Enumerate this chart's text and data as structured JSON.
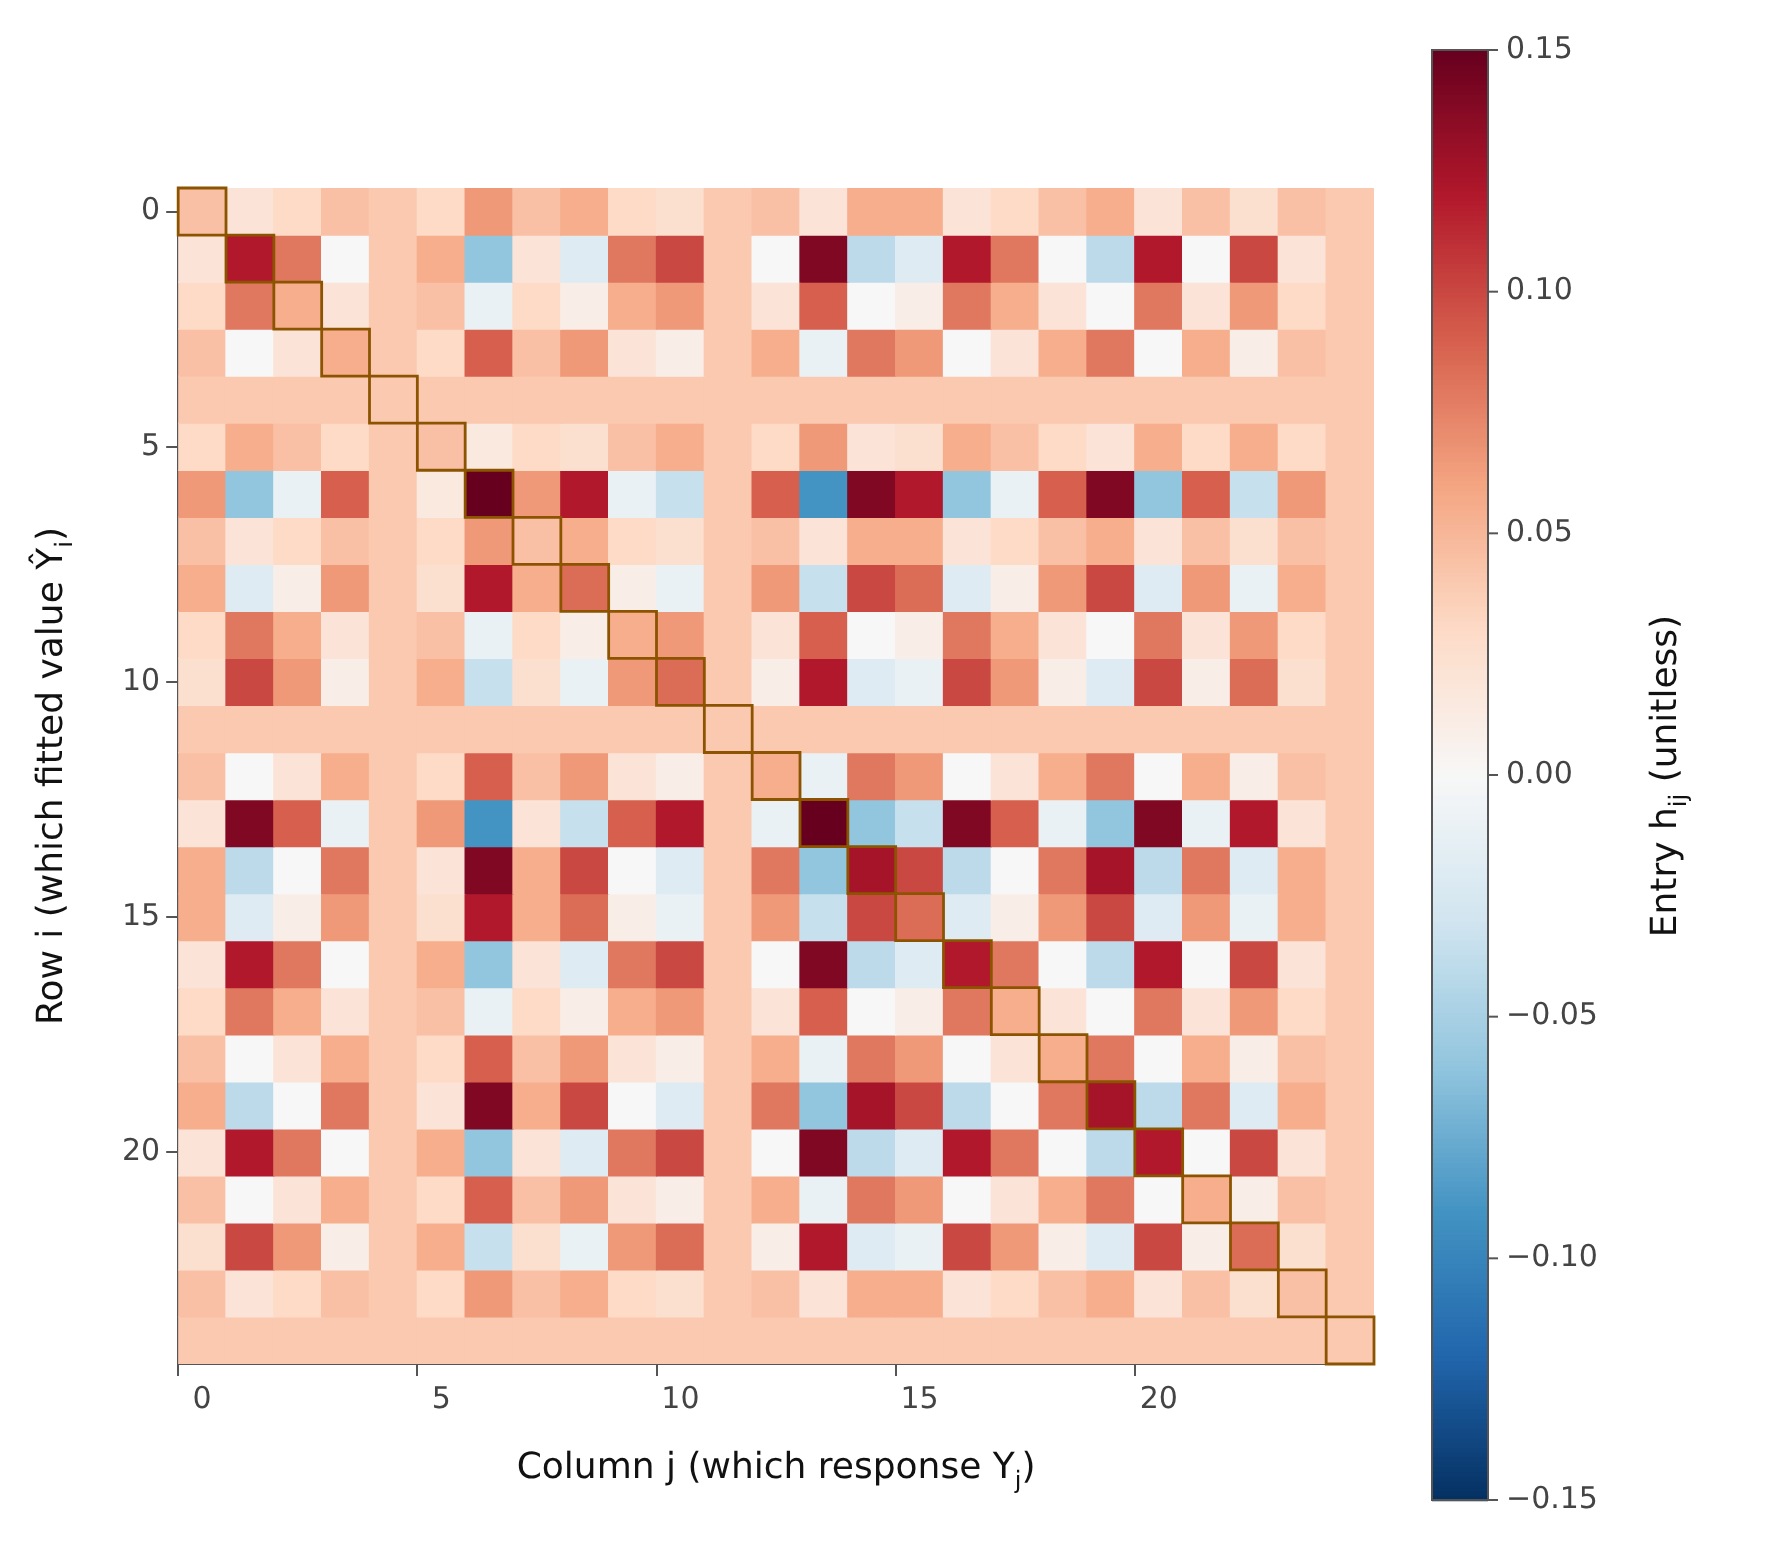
{
  "chart_data": {
    "type": "heatmap",
    "xlabel": "Column j (which response Y$_{j}$)",
    "ylabel": "Row i (which fitted value Ŷ$_{i}$)",
    "clabel": "Entry h$_{ij}$ (unitless)",
    "categories": [
      "0",
      null,
      null,
      null,
      null,
      "5",
      null,
      null,
      null,
      null,
      "10",
      null,
      null,
      null,
      null,
      "15",
      null,
      null,
      null,
      null,
      "20",
      null,
      null,
      null,
      null
    ],
    "y_categories": [
      "0",
      null,
      null,
      null,
      null,
      "5",
      null,
      null,
      null,
      null,
      "10",
      null,
      null,
      null,
      null,
      "15",
      null,
      null,
      null,
      null,
      "20",
      null,
      null,
      null,
      null
    ],
    "clim": [
      -0.15,
      0.15
    ],
    "cticks": [
      {
        "value": -0.15,
        "label": "−0.15"
      },
      {
        "value": -0.1,
        "label": "−0.10"
      },
      {
        "value": -0.05,
        "label": "−0.05"
      },
      {
        "value": 0,
        "label": "0.00"
      },
      0.05,
      {
        "value": 0.1,
        "label": "0.10"
      },
      0.15
    ],
    "cells": [
      [
        0.045,
        0.02,
        0.03,
        0.045,
        0.04,
        0.03,
        0.065,
        0.045,
        0.055,
        0.03,
        0.025,
        0.04,
        0.045,
        0.02,
        0.055,
        0.055,
        0.02,
        0.03,
        0.045,
        0.055,
        0.02,
        0.045,
        0.025,
        0.045,
        0.04
      ],
      [
        0.02,
        0.12,
        0.08,
        0,
        0.04,
        0.055,
        -0.06,
        0.02,
        -0.02,
        0.08,
        0.1,
        0.04,
        0,
        0.14,
        -0.04,
        -0.02,
        0.12,
        0.08,
        0,
        -0.04,
        0.12,
        0,
        0.1,
        0.02,
        0.04
      ],
      [
        0.03,
        0.08,
        0.055,
        0.02,
        0.04,
        0.045,
        -0.01,
        0.03,
        0.01,
        0.055,
        0.065,
        0.04,
        0.02,
        0.09,
        0,
        0.01,
        0.08,
        0.055,
        0.02,
        0,
        0.08,
        0.02,
        0.065,
        0.03,
        0.04
      ],
      [
        0.045,
        0,
        0.02,
        0.055,
        0.04,
        0.03,
        0.09,
        0.045,
        0.065,
        0.02,
        0.01,
        0.04,
        0.055,
        -0.01,
        0.08,
        0.065,
        0,
        0.02,
        0.055,
        0.08,
        0,
        0.055,
        0.01,
        0.045,
        0.04
      ],
      [
        0.04,
        0.04,
        0.04,
        0.04,
        0.04,
        0.04,
        0.04,
        0.04,
        0.04,
        0.04,
        0.04,
        0.04,
        0.04,
        0.04,
        0.04,
        0.04,
        0.04,
        0.04,
        0.04,
        0.04,
        0.04,
        0.04,
        0.04,
        0.04,
        0.04
      ],
      [
        0.03,
        0.055,
        0.045,
        0.03,
        0.04,
        0.045,
        0.015,
        0.03,
        0.025,
        0.045,
        0.055,
        0.04,
        0.03,
        0.065,
        0.02,
        0.025,
        0.055,
        0.045,
        0.03,
        0.02,
        0.055,
        0.03,
        0.055,
        0.03,
        0.04
      ],
      [
        0.065,
        -0.06,
        -0.01,
        0.09,
        0.04,
        0.015,
        0.15,
        0.065,
        0.12,
        -0.01,
        -0.035,
        0.04,
        0.09,
        -0.09,
        0.14,
        0.12,
        -0.06,
        -0.01,
        0.09,
        0.14,
        -0.06,
        0.09,
        -0.035,
        0.065,
        0.04
      ],
      [
        0.045,
        0.02,
        0.03,
        0.045,
        0.04,
        0.03,
        0.065,
        0.045,
        0.055,
        0.03,
        0.025,
        0.04,
        0.045,
        0.02,
        0.055,
        0.055,
        0.02,
        0.03,
        0.045,
        0.055,
        0.02,
        0.045,
        0.025,
        0.045,
        0.04
      ],
      [
        0.055,
        -0.02,
        0.01,
        0.065,
        0.04,
        0.025,
        0.12,
        0.055,
        0.085,
        0.01,
        -0.01,
        0.04,
        0.065,
        -0.035,
        0.1,
        0.085,
        -0.02,
        0.01,
        0.065,
        0.1,
        -0.02,
        0.065,
        -0.01,
        0.055,
        0.04
      ],
      [
        0.03,
        0.08,
        0.055,
        0.02,
        0.04,
        0.045,
        -0.01,
        0.03,
        0.01,
        0.055,
        0.065,
        0.04,
        0.02,
        0.09,
        0,
        0.01,
        0.08,
        0.055,
        0.02,
        0,
        0.08,
        0.02,
        0.065,
        0.03,
        0.04
      ],
      [
        0.025,
        0.1,
        0.065,
        0.01,
        0.04,
        0.055,
        -0.035,
        0.025,
        -0.01,
        0.065,
        0.085,
        0.04,
        0.01,
        0.12,
        -0.02,
        -0.01,
        0.1,
        0.065,
        0.01,
        -0.02,
        0.1,
        0.01,
        0.085,
        0.025,
        0.04
      ],
      [
        0.04,
        0.04,
        0.04,
        0.04,
        0.04,
        0.04,
        0.04,
        0.04,
        0.04,
        0.04,
        0.04,
        0.04,
        0.04,
        0.04,
        0.04,
        0.04,
        0.04,
        0.04,
        0.04,
        0.04,
        0.04,
        0.04,
        0.04,
        0.04,
        0.04
      ],
      [
        0.045,
        0,
        0.02,
        0.055,
        0.04,
        0.03,
        0.09,
        0.045,
        0.065,
        0.02,
        0.01,
        0.04,
        0.055,
        -0.01,
        0.08,
        0.065,
        0,
        0.02,
        0.055,
        0.08,
        0,
        0.055,
        0.01,
        0.045,
        0.04
      ],
      [
        0.02,
        0.14,
        0.09,
        -0.01,
        0.04,
        0.065,
        -0.09,
        0.02,
        -0.035,
        0.09,
        0.12,
        0.04,
        -0.01,
        0.15,
        -0.06,
        -0.035,
        0.14,
        0.09,
        -0.01,
        -0.06,
        0.14,
        -0.01,
        0.12,
        0.02,
        0.04
      ],
      [
        0.055,
        -0.04,
        0,
        0.08,
        0.04,
        0.02,
        0.14,
        0.055,
        0.1,
        0,
        -0.02,
        0.04,
        0.08,
        -0.06,
        0.125,
        0.1,
        -0.04,
        0,
        0.08,
        0.125,
        -0.04,
        0.08,
        -0.02,
        0.055,
        0.04
      ],
      [
        0.055,
        -0.02,
        0.01,
        0.065,
        0.04,
        0.025,
        0.12,
        0.055,
        0.085,
        0.01,
        -0.01,
        0.04,
        0.065,
        -0.035,
        0.1,
        0.085,
        -0.02,
        0.01,
        0.065,
        0.1,
        -0.02,
        0.065,
        -0.01,
        0.055,
        0.04
      ],
      [
        0.02,
        0.12,
        0.08,
        0,
        0.04,
        0.055,
        -0.06,
        0.02,
        -0.02,
        0.08,
        0.1,
        0.04,
        0,
        0.14,
        -0.04,
        -0.02,
        0.12,
        0.08,
        0,
        -0.04,
        0.12,
        0,
        0.1,
        0.02,
        0.04
      ],
      [
        0.03,
        0.08,
        0.055,
        0.02,
        0.04,
        0.045,
        -0.01,
        0.03,
        0.01,
        0.055,
        0.065,
        0.04,
        0.02,
        0.09,
        0,
        0.01,
        0.08,
        0.055,
        0.02,
        0,
        0.08,
        0.02,
        0.065,
        0.03,
        0.04
      ],
      [
        0.045,
        0,
        0.02,
        0.055,
        0.04,
        0.03,
        0.09,
        0.045,
        0.065,
        0.02,
        0.01,
        0.04,
        0.055,
        -0.01,
        0.08,
        0.065,
        0,
        0.02,
        0.055,
        0.08,
        0,
        0.055,
        0.01,
        0.045,
        0.04
      ],
      [
        0.055,
        -0.04,
        0,
        0.08,
        0.04,
        0.02,
        0.14,
        0.055,
        0.1,
        0,
        -0.02,
        0.04,
        0.08,
        -0.06,
        0.125,
        0.1,
        -0.04,
        0,
        0.08,
        0.125,
        -0.04,
        0.08,
        -0.02,
        0.055,
        0.04
      ],
      [
        0.02,
        0.12,
        0.08,
        0,
        0.04,
        0.055,
        -0.06,
        0.02,
        -0.02,
        0.08,
        0.1,
        0.04,
        0,
        0.14,
        -0.04,
        -0.02,
        0.12,
        0.08,
        0,
        -0.04,
        0.12,
        0,
        0.1,
        0.02,
        0.04
      ],
      [
        0.045,
        0,
        0.02,
        0.055,
        0.04,
        0.03,
        0.09,
        0.045,
        0.065,
        0.02,
        0.01,
        0.04,
        0.055,
        -0.01,
        0.08,
        0.065,
        0,
        0.02,
        0.055,
        0.08,
        0,
        0.055,
        0.01,
        0.045,
        0.04
      ],
      [
        0.025,
        0.1,
        0.065,
        0.01,
        0.04,
        0.055,
        -0.035,
        0.025,
        -0.01,
        0.065,
        0.085,
        0.04,
        0.01,
        0.12,
        -0.02,
        -0.01,
        0.1,
        0.065,
        0.01,
        -0.02,
        0.1,
        0.01,
        0.085,
        0.025,
        0.04
      ],
      [
        0.045,
        0.02,
        0.03,
        0.045,
        0.04,
        0.03,
        0.065,
        0.045,
        0.055,
        0.03,
        0.025,
        0.04,
        0.045,
        0.02,
        0.055,
        0.055,
        0.02,
        0.03,
        0.045,
        0.055,
        0.02,
        0.045,
        0.025,
        0.045,
        0.04
      ],
      [
        0.04,
        0.04,
        0.04,
        0.04,
        0.04,
        0.04,
        0.04,
        0.04,
        0.04,
        0.04,
        0.04,
        0.04,
        0.04,
        0.04,
        0.04,
        0.04,
        0.04,
        0.04,
        0.04,
        0.04,
        0.04,
        0.04,
        0.04,
        0.04,
        0.04
      ]
    ]
  }
}
